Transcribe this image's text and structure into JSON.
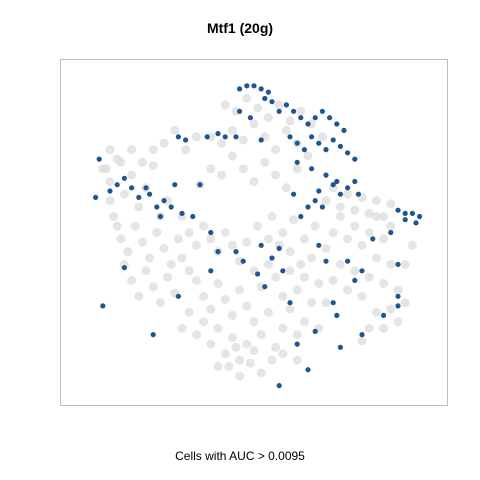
{
  "chart_data": {
    "type": "scatter",
    "title": "Mtf1 (20g)",
    "caption": "Cells with AUC > 0.0095",
    "xlabel": "",
    "ylabel": "",
    "xlim": [
      0,
      100
    ],
    "ylim": [
      0,
      100
    ],
    "grid": false,
    "legend": "none",
    "series": [
      {
        "color": "#dcdcdc",
        "points": [
          [
            9,
            70
          ],
          [
            10,
            66
          ],
          [
            12,
            73
          ],
          [
            14,
            62
          ],
          [
            16,
            68
          ],
          [
            18,
            58
          ],
          [
            20,
            64
          ],
          [
            22,
            71
          ],
          [
            24,
            55
          ],
          [
            26,
            60
          ],
          [
            11,
            55
          ],
          [
            13,
            48
          ],
          [
            15,
            44
          ],
          [
            17,
            52
          ],
          [
            19,
            47
          ],
          [
            21,
            42
          ],
          [
            23,
            50
          ],
          [
            25,
            45
          ],
          [
            27,
            40
          ],
          [
            29,
            48
          ],
          [
            10,
            60
          ],
          [
            12,
            52
          ],
          [
            14,
            40
          ],
          [
            16,
            35
          ],
          [
            18,
            30
          ],
          [
            20,
            38
          ],
          [
            22,
            33
          ],
          [
            24,
            28
          ],
          [
            26,
            36
          ],
          [
            28,
            31
          ],
          [
            30,
            42
          ],
          [
            32,
            38
          ],
          [
            34,
            35
          ],
          [
            36,
            30
          ],
          [
            38,
            26
          ],
          [
            40,
            34
          ],
          [
            42,
            29
          ],
          [
            44,
            24
          ],
          [
            46,
            32
          ],
          [
            48,
            27
          ],
          [
            30,
            55
          ],
          [
            32,
            50
          ],
          [
            34,
            46
          ],
          [
            36,
            52
          ],
          [
            38,
            48
          ],
          [
            40,
            44
          ],
          [
            42,
            50
          ],
          [
            44,
            46
          ],
          [
            46,
            41
          ],
          [
            48,
            47
          ],
          [
            30,
            20
          ],
          [
            32,
            25
          ],
          [
            34,
            18
          ],
          [
            36,
            22
          ],
          [
            38,
            15
          ],
          [
            40,
            20
          ],
          [
            42,
            12
          ],
          [
            44,
            17
          ],
          [
            46,
            10
          ],
          [
            48,
            15
          ],
          [
            50,
            22
          ],
          [
            52,
            18
          ],
          [
            54,
            25
          ],
          [
            56,
            14
          ],
          [
            58,
            20
          ],
          [
            60,
            26
          ],
          [
            62,
            18
          ],
          [
            64,
            22
          ],
          [
            66,
            28
          ],
          [
            68,
            20
          ],
          [
            50,
            38
          ],
          [
            52,
            33
          ],
          [
            54,
            40
          ],
          [
            56,
            36
          ],
          [
            58,
            30
          ],
          [
            60,
            38
          ],
          [
            62,
            32
          ],
          [
            64,
            36
          ],
          [
            66,
            42
          ],
          [
            68,
            34
          ],
          [
            70,
            28
          ],
          [
            72,
            35
          ],
          [
            74,
            40
          ],
          [
            76,
            32
          ],
          [
            78,
            38
          ],
          [
            80,
            30
          ],
          [
            82,
            36
          ],
          [
            84,
            42
          ],
          [
            86,
            34
          ],
          [
            88,
            40
          ],
          [
            70,
            45
          ],
          [
            72,
            50
          ],
          [
            74,
            55
          ],
          [
            76,
            48
          ],
          [
            78,
            52
          ],
          [
            80,
            46
          ],
          [
            82,
            50
          ],
          [
            84,
            55
          ],
          [
            86,
            48
          ],
          [
            88,
            52
          ],
          [
            70,
            60
          ],
          [
            72,
            64
          ],
          [
            74,
            58
          ],
          [
            76,
            62
          ],
          [
            78,
            57
          ],
          [
            80,
            61
          ],
          [
            82,
            56
          ],
          [
            84,
            60
          ],
          [
            86,
            55
          ],
          [
            88,
            59
          ],
          [
            35,
            65
          ],
          [
            38,
            70
          ],
          [
            41,
            68
          ],
          [
            44,
            74
          ],
          [
            47,
            70
          ],
          [
            50,
            66
          ],
          [
            53,
            72
          ],
          [
            56,
            68
          ],
          [
            59,
            64
          ],
          [
            62,
            70
          ],
          [
            38,
            80
          ],
          [
            41,
            78
          ],
          [
            44,
            82
          ],
          [
            47,
            79
          ],
          [
            50,
            84
          ],
          [
            53,
            80
          ],
          [
            56,
            76
          ],
          [
            59,
            82
          ],
          [
            62,
            78
          ],
          [
            65,
            74
          ],
          [
            42,
            90
          ],
          [
            45,
            88
          ],
          [
            48,
            92
          ],
          [
            51,
            89
          ],
          [
            54,
            86
          ],
          [
            57,
            90
          ],
          [
            60,
            85
          ],
          [
            63,
            88
          ],
          [
            66,
            84
          ],
          [
            69,
            80
          ],
          [
            25,
            78
          ],
          [
            28,
            82
          ],
          [
            31,
            76
          ],
          [
            34,
            80
          ],
          [
            22,
            76
          ],
          [
            19,
            72
          ],
          [
            16,
            76
          ],
          [
            13,
            72
          ],
          [
            10,
            76
          ],
          [
            8,
            70
          ],
          [
            55,
            55
          ],
          [
            58,
            50
          ],
          [
            61,
            54
          ],
          [
            64,
            48
          ],
          [
            67,
            52
          ],
          [
            60,
            44
          ],
          [
            63,
            40
          ],
          [
            57,
            46
          ],
          [
            54,
            48
          ],
          [
            51,
            52
          ],
          [
            43,
            8
          ],
          [
            46,
            5
          ],
          [
            49,
            9
          ],
          [
            52,
            6
          ],
          [
            55,
            10
          ],
          [
            45,
            14
          ],
          [
            50,
            13
          ],
          [
            58,
            12
          ],
          [
            40,
            8
          ],
          [
            62,
            10
          ],
          [
            84,
            25
          ],
          [
            86,
            20
          ],
          [
            88,
            26
          ],
          [
            90,
            22
          ],
          [
            82,
            20
          ],
          [
            80,
            16
          ],
          [
            92,
            28
          ],
          [
            90,
            32
          ],
          [
            92,
            40
          ],
          [
            94,
            46
          ]
        ]
      },
      {
        "color": "#1f5592",
        "points": [
          [
            46,
            95
          ],
          [
            48,
            96
          ],
          [
            50,
            96
          ],
          [
            52,
            95
          ],
          [
            54,
            94
          ],
          [
            53,
            92
          ],
          [
            55,
            91
          ],
          [
            46,
            88
          ],
          [
            49,
            86
          ],
          [
            57,
            88
          ],
          [
            59,
            90
          ],
          [
            61,
            88
          ],
          [
            63,
            86
          ],
          [
            65,
            84
          ],
          [
            67,
            86
          ],
          [
            69,
            88
          ],
          [
            71,
            86
          ],
          [
            73,
            84
          ],
          [
            75,
            82
          ],
          [
            60,
            80
          ],
          [
            62,
            78
          ],
          [
            64,
            76
          ],
          [
            66,
            80
          ],
          [
            68,
            78
          ],
          [
            70,
            76
          ],
          [
            72,
            79
          ],
          [
            74,
            77
          ],
          [
            76,
            75
          ],
          [
            78,
            73
          ],
          [
            62,
            72
          ],
          [
            66,
            70
          ],
          [
            70,
            68
          ],
          [
            73,
            66
          ],
          [
            76,
            64
          ],
          [
            78,
            66
          ],
          [
            74,
            62
          ],
          [
            72,
            65
          ],
          [
            79,
            62
          ],
          [
            68,
            63
          ],
          [
            67,
            60
          ],
          [
            69,
            58
          ],
          [
            65,
            58
          ],
          [
            63,
            55
          ],
          [
            61,
            62
          ],
          [
            90,
            57
          ],
          [
            92,
            56
          ],
          [
            94,
            56
          ],
          [
            96,
            55
          ],
          [
            95,
            53
          ],
          [
            92,
            54
          ],
          [
            7,
            73
          ],
          [
            6,
            61
          ],
          [
            10,
            63
          ],
          [
            12,
            65
          ],
          [
            14,
            67
          ],
          [
            16,
            64
          ],
          [
            18,
            61
          ],
          [
            20,
            64
          ],
          [
            21,
            62
          ],
          [
            23,
            58
          ],
          [
            24,
            55
          ],
          [
            25,
            60
          ],
          [
            27,
            58
          ],
          [
            28,
            65
          ],
          [
            30,
            56
          ],
          [
            33,
            55
          ],
          [
            29,
            80
          ],
          [
            31,
            79
          ],
          [
            37,
            80
          ],
          [
            40,
            81
          ],
          [
            42,
            80
          ],
          [
            45,
            80
          ],
          [
            52,
            79
          ],
          [
            35,
            65
          ],
          [
            38,
            50
          ],
          [
            45,
            44
          ],
          [
            40,
            44
          ],
          [
            47,
            41
          ],
          [
            52,
            46
          ],
          [
            55,
            42
          ],
          [
            58,
            38
          ],
          [
            57,
            45
          ],
          [
            88,
            50
          ],
          [
            90,
            40
          ],
          [
            76,
            41
          ],
          [
            70,
            41
          ],
          [
            68,
            46
          ],
          [
            83,
            48
          ],
          [
            80,
            38
          ],
          [
            78,
            35
          ],
          [
            90,
            27
          ],
          [
            14,
            39
          ],
          [
            8,
            27
          ],
          [
            22,
            18
          ],
          [
            29,
            30
          ],
          [
            38,
            38
          ],
          [
            51,
            37
          ],
          [
            53,
            33
          ],
          [
            60,
            28
          ],
          [
            67,
            19
          ],
          [
            73,
            24
          ],
          [
            80,
            18
          ],
          [
            86,
            24
          ],
          [
            90,
            30
          ],
          [
            72,
            28
          ],
          [
            62,
            15
          ],
          [
            74,
            14
          ],
          [
            65,
            7
          ],
          [
            57,
            2
          ]
        ]
      }
    ]
  }
}
